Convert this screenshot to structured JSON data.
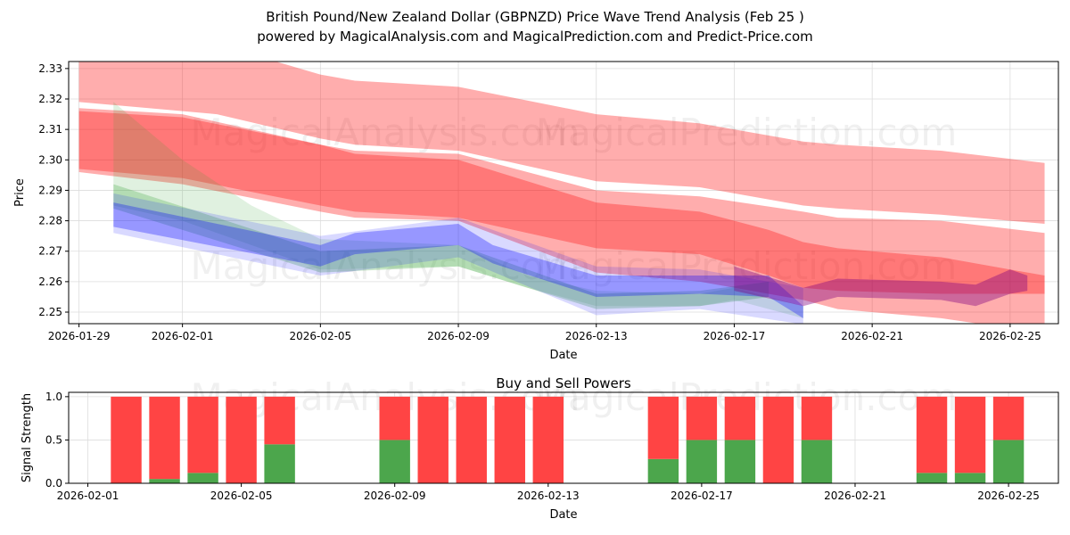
{
  "title_line1": "British Pound/New Zealand Dollar (GBPNZD) Price Wave Trend Analysis (Feb 25 )",
  "title_line2": "powered by MagicalAnalysis.com and MagicalPrediction.com and Predict-Price.com",
  "watermarks": [
    "MagicalAnalysis.com",
    "MagicalPrediction.com"
  ],
  "chart_data": [
    {
      "type": "area",
      "title": "",
      "xlabel": "Date",
      "ylabel": "Price",
      "xlim": [
        "2026-01-28.7",
        "2026-02-26.4"
      ],
      "x_start": "2026-01-29",
      "ylim": [
        2.2462,
        2.3323
      ],
      "grid": true,
      "x_ticks": [
        "2026-01-29",
        "2026-02-01",
        "2026-02-05",
        "2026-02-09",
        "2026-02-13",
        "2026-02-17",
        "2026-02-21",
        "2026-02-25"
      ],
      "y_ticks": [
        "2.25",
        "2.26",
        "2.27",
        "2.28",
        "2.29",
        "2.30",
        "2.31",
        "2.32",
        "2.33"
      ],
      "bands": [
        {
          "name": "upper-light-red",
          "color": "#ff0000",
          "alpha": 0.32,
          "points": [
            [
              "2026-01-29",
              2.345,
              2.319
            ],
            [
              "2026-02-01",
              2.34,
              2.316
            ],
            [
              "2026-02-02",
              2.338,
              2.315
            ],
            [
              "2026-02-05",
              2.328,
              2.307
            ],
            [
              "2026-02-06",
              2.326,
              2.305
            ],
            [
              "2026-02-09",
              2.324,
              2.303
            ],
            [
              "2026-02-13",
              2.315,
              2.293
            ],
            [
              "2026-02-16",
              2.312,
              2.291
            ],
            [
              "2026-02-19",
              2.306,
              2.285
            ],
            [
              "2026-02-20",
              2.305,
              2.284
            ],
            [
              "2026-02-23",
              2.303,
              2.282
            ],
            [
              "2026-02-26",
              2.299,
              2.279
            ]
          ]
        },
        {
          "name": "lower-light-red",
          "color": "#ff0000",
          "alpha": 0.32,
          "points": [
            [
              "2026-01-29",
              2.317,
              2.296
            ],
            [
              "2026-02-01",
              2.315,
              2.292
            ],
            [
              "2026-02-05",
              2.305,
              2.283
            ],
            [
              "2026-02-06",
              2.303,
              2.281
            ],
            [
              "2026-02-09",
              2.302,
              2.28
            ],
            [
              "2026-02-13",
              2.29,
              2.263
            ],
            [
              "2026-02-16",
              2.288,
              2.26
            ],
            [
              "2026-02-19",
              2.283,
              2.254
            ],
            [
              "2026-02-20",
              2.281,
              2.251
            ],
            [
              "2026-02-23",
              2.28,
              2.248
            ],
            [
              "2026-02-26",
              2.276,
              2.243
            ]
          ]
        },
        {
          "name": "core-red",
          "color": "#ff0000",
          "alpha": 0.3,
          "points": [
            [
              "2026-01-29",
              2.316,
              2.297
            ],
            [
              "2026-02-01",
              2.314,
              2.294
            ],
            [
              "2026-02-05",
              2.305,
              2.285
            ],
            [
              "2026-02-06",
              2.302,
              2.283
            ],
            [
              "2026-02-09",
              2.3,
              2.281
            ],
            [
              "2026-02-13",
              2.286,
              2.271
            ],
            [
              "2026-02-16",
              2.283,
              2.269
            ],
            [
              "2026-02-18",
              2.277,
              2.262
            ],
            [
              "2026-02-19",
              2.273,
              2.258
            ],
            [
              "2026-02-20",
              2.271,
              2.257
            ],
            [
              "2026-02-23",
              2.268,
              2.256
            ],
            [
              "2026-02-26",
              2.262,
              2.256
            ]
          ]
        },
        {
          "name": "green-wide",
          "color": "#2ca02c",
          "alpha": 0.15,
          "points": [
            [
              "2026-01-30",
              2.319,
              2.285
            ],
            [
              "2026-02-01",
              2.3,
              2.28
            ],
            [
              "2026-02-03",
              2.285,
              2.272
            ],
            [
              "2026-02-05",
              2.274,
              2.264
            ],
            [
              "2026-02-09",
              2.272,
              2.265
            ],
            [
              "2026-02-11",
              2.262,
              2.258
            ],
            [
              "2026-02-13",
              2.257,
              2.252
            ],
            [
              "2026-02-16",
              2.256,
              2.252
            ],
            [
              "2026-02-17",
              2.258,
              2.254
            ],
            [
              "2026-02-19",
              2.252,
              2.248
            ]
          ]
        },
        {
          "name": "green-core",
          "color": "#2ca02c",
          "alpha": 0.25,
          "points": [
            [
              "2026-01-30",
              2.292,
              2.284
            ],
            [
              "2026-02-05",
              2.27,
              2.263
            ],
            [
              "2026-02-09",
              2.272,
              2.265
            ],
            [
              "2026-02-13",
              2.256,
              2.251
            ],
            [
              "2026-02-16",
              2.257,
              2.252
            ],
            [
              "2026-02-18",
              2.26,
              2.255
            ]
          ]
        },
        {
          "name": "blue-wide",
          "color": "#0000ff",
          "alpha": 0.15,
          "points": [
            [
              "2026-01-30",
              2.289,
              2.276
            ],
            [
              "2026-02-05",
              2.275,
              2.262
            ],
            [
              "2026-02-09",
              2.281,
              2.268
            ],
            [
              "2026-02-13",
              2.265,
              2.249
            ],
            [
              "2026-02-16",
              2.264,
              2.251
            ],
            [
              "2026-02-19",
              2.258,
              2.246
            ]
          ]
        },
        {
          "name": "blue-core",
          "color": "#0000ff",
          "alpha": 0.3,
          "points": [
            [
              "2026-01-30",
              2.286,
              2.278
            ],
            [
              "2026-02-05",
              2.272,
              2.265
            ],
            [
              "2026-02-06",
              2.276,
              2.269
            ],
            [
              "2026-02-09",
              2.279,
              2.272
            ],
            [
              "2026-02-10",
              2.272,
              2.266
            ],
            [
              "2026-02-13",
              2.262,
              2.255
            ],
            [
              "2026-02-16",
              2.262,
              2.256
            ],
            [
              "2026-02-18",
              2.262,
              2.255
            ],
            [
              "2026-02-19",
              2.252,
              2.248
            ]
          ]
        },
        {
          "name": "purple-core",
          "color": "#800080",
          "alpha": 0.4,
          "points": [
            [
              "2026-02-17",
              2.265,
              2.257
            ],
            [
              "2026-02-19",
              2.258,
              2.252
            ],
            [
              "2026-02-20",
              2.261,
              2.255
            ],
            [
              "2026-02-23",
              2.26,
              2.254
            ],
            [
              "2026-02-24",
              2.259,
              2.252
            ],
            [
              "2026-02-25",
              2.264,
              2.256
            ],
            [
              "2026-02-25.5",
              2.262,
              2.257
            ]
          ]
        }
      ]
    },
    {
      "type": "bar",
      "title": "Buy and Sell Powers",
      "xlabel": "Date",
      "ylabel": "Signal Strength",
      "ylim": [
        0,
        1.05
      ],
      "xlim": [
        "2026-01-31.5",
        "2026-02-26.3"
      ],
      "x_ticks": [
        "2026-02-01",
        "2026-02-05",
        "2026-02-09",
        "2026-02-13",
        "2026-02-17",
        "2026-02-21",
        "2026-02-25"
      ],
      "y_ticks": [
        "0.0",
        "0.5",
        "1.0"
      ],
      "buy_color": "#4ca64c",
      "sell_color": "#ff4444",
      "categories": [
        "2026-02-02",
        "2026-02-03",
        "2026-02-04",
        "2026-02-05",
        "2026-02-06",
        "2026-02-09",
        "2026-02-10",
        "2026-02-11",
        "2026-02-12",
        "2026-02-13",
        "2026-02-16",
        "2026-02-17",
        "2026-02-18",
        "2026-02-19",
        "2026-02-20",
        "2026-02-23",
        "2026-02-24",
        "2026-02-25"
      ],
      "series": [
        {
          "name": "Buy",
          "values": [
            0,
            0.05,
            0.12,
            0,
            0.45,
            0.5,
            0,
            0,
            0,
            0,
            0.28,
            0.5,
            0.5,
            0,
            0.5,
            0.12,
            0.12,
            0.5
          ]
        },
        {
          "name": "Sell",
          "values": [
            1,
            0.95,
            0.88,
            1,
            0.55,
            0.5,
            1,
            1,
            1,
            1,
            0.72,
            0.5,
            0.5,
            1,
            0.5,
            0.88,
            0.88,
            0.5
          ]
        }
      ]
    }
  ]
}
